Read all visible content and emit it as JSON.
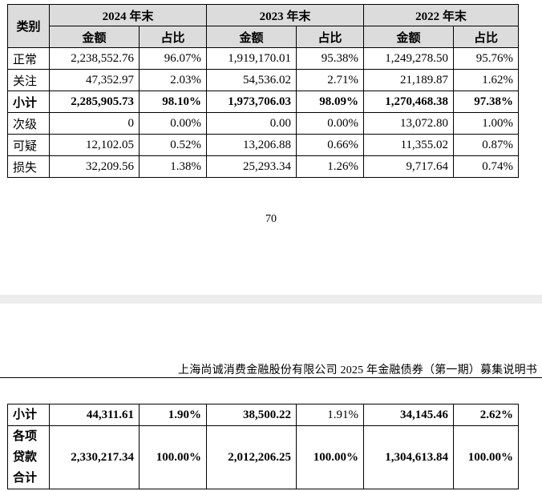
{
  "top_table": {
    "category_header": "类别",
    "year_headers": [
      "2024 年末",
      "2023 年末",
      "2022 年末"
    ],
    "sub_headers": [
      "金额",
      "占比"
    ],
    "rows": [
      {
        "label": "正常",
        "bold": false,
        "cells": [
          "2,238,552.76",
          "96.07%",
          "1,919,170.01",
          "95.38%",
          "1,249,278.50",
          "95.76%"
        ]
      },
      {
        "label": "关注",
        "bold": false,
        "cells": [
          "47,352.97",
          "2.03%",
          "54,536.02",
          "2.71%",
          "21,189.87",
          "1.62%"
        ]
      },
      {
        "label": "小计",
        "bold": true,
        "cells": [
          "2,285,905.73",
          "98.10%",
          "1,973,706.03",
          "98.09%",
          "1,270,468.38",
          "97.38%"
        ]
      },
      {
        "label": "次级",
        "bold": false,
        "cells": [
          "0",
          "0.00%",
          "0.00",
          "0.00%",
          "13,072.80",
          "1.00%"
        ]
      },
      {
        "label": "可疑",
        "bold": false,
        "cells": [
          "12,102.05",
          "0.52%",
          "13,206.88",
          "0.66%",
          "11,355.02",
          "0.87%"
        ]
      },
      {
        "label": "损失",
        "bold": false,
        "cells": [
          "32,209.56",
          "1.38%",
          "25,293.34",
          "1.26%",
          "9,717.64",
          "0.74%"
        ]
      }
    ]
  },
  "page_number": "70",
  "doc_title": "上海尚诚消费金融股份有限公司 2025 年金融债券（第一期）募集说明书",
  "bottom_table": {
    "rows": [
      {
        "label": [
          "小计"
        ],
        "bold_flags": [
          true,
          true,
          true,
          false,
          true,
          true
        ],
        "cells": [
          "44,311.61",
          "1.90%",
          "38,500.22",
          "1.91%",
          "34,145.46",
          "2.62%"
        ]
      },
      {
        "label": [
          "各项",
          "贷款",
          "合计"
        ],
        "bold_flags": [
          true,
          true,
          true,
          true,
          true,
          true
        ],
        "cells": [
          "2,330,217.34",
          "100.00%",
          "2,012,206.25",
          "100.00%",
          "1,304,613.84",
          "100.00%"
        ]
      }
    ]
  }
}
